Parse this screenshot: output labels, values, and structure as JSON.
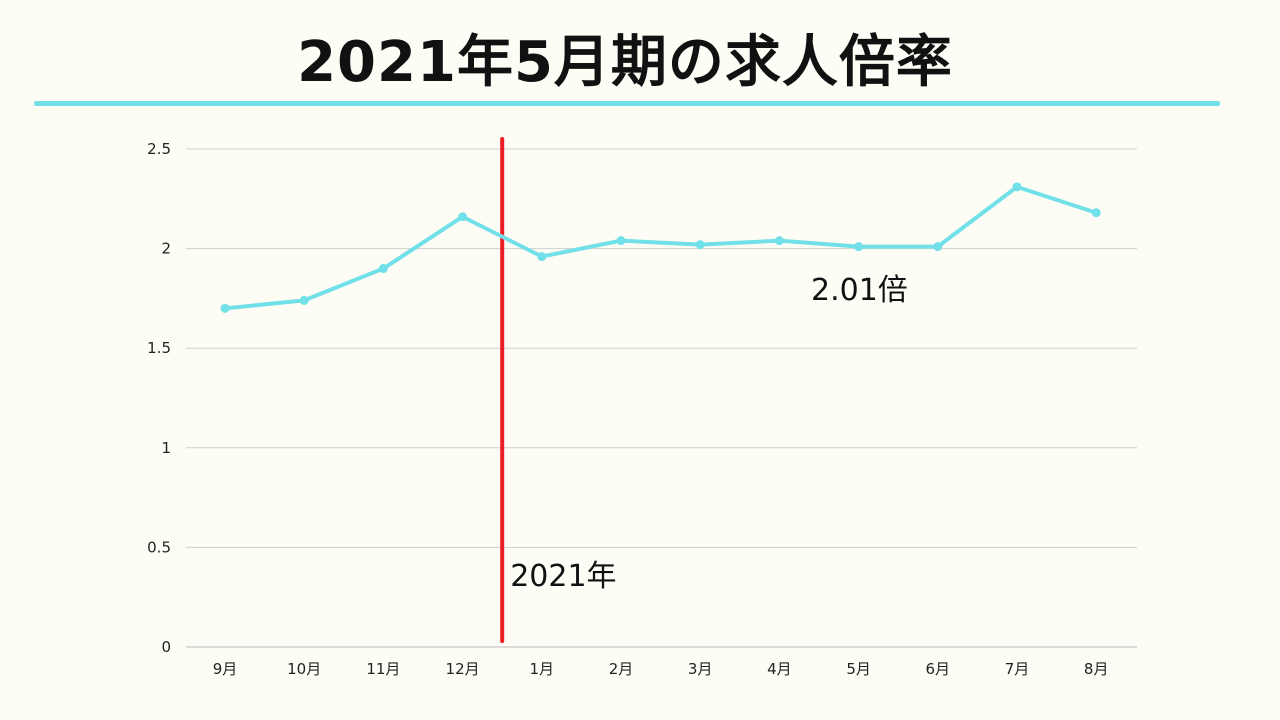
{
  "title": "2021年5月期の求人倍率",
  "colors": {
    "background": "#fdfdf6",
    "series_line": "#72e0e8",
    "marker_line": "#ee1c24",
    "grid": "#d0d0d0",
    "text": "#111111"
  },
  "chart_data": {
    "type": "line",
    "title": "2021年5月期の求人倍率",
    "xlabel": "",
    "ylabel": "",
    "categories": [
      "9月",
      "10月",
      "11月",
      "12月",
      "1月",
      "2月",
      "3月",
      "4月",
      "5月",
      "6月",
      "7月",
      "8月"
    ],
    "series": [
      {
        "values": [
          1.7,
          1.74,
          1.9,
          2.16,
          1.96,
          2.04,
          2.02,
          2.04,
          2.01,
          2.01,
          2.31,
          2.18
        ]
      }
    ],
    "ylim": [
      0,
      2.5
    ],
    "yticks": [
      "0",
      "0.5",
      "1",
      "1.5",
      "2",
      "2.5"
    ],
    "grid": "horizontal",
    "legend": "none",
    "annotations": [
      {
        "text": "2021年",
        "note": "vertical divider between 12月 and 1月"
      },
      {
        "text": "2.01倍",
        "note": "value label near 5月 point"
      }
    ]
  }
}
